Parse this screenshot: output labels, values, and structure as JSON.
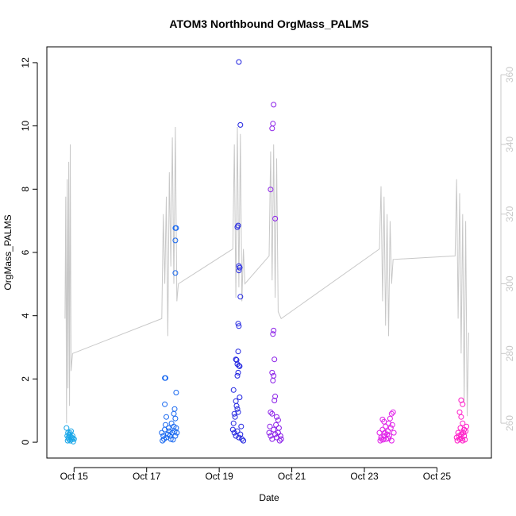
{
  "chart_data": {
    "type": "scatter",
    "title": "ATOM3 Northbound OrgMass_PALMS",
    "xlabel": "Date",
    "ylabel": "OrgMass_PALMS",
    "xlim": [
      "2017-10-14 06:00",
      "2017-10-26 12:00"
    ],
    "ylim": [
      -0.5,
      12.5
    ],
    "y2lim": [
      250,
      368
    ],
    "x_ticks": [
      {
        "label": "Oct 15",
        "value": "2017-10-15"
      },
      {
        "label": "Oct 17",
        "value": "2017-10-17"
      },
      {
        "label": "Oct 19",
        "value": "2017-10-19"
      },
      {
        "label": "Oct 21",
        "value": "2017-10-21"
      },
      {
        "label": "Oct 23",
        "value": "2017-10-23"
      },
      {
        "label": "Oct 25",
        "value": "2017-10-25"
      }
    ],
    "y_ticks": [
      0,
      2,
      4,
      6,
      8,
      10,
      12
    ],
    "y2_ticks": [
      260,
      280,
      300,
      320,
      340,
      360
    ],
    "grid": false,
    "colors": {
      "flight1": "#1aa7e8",
      "flight2": "#1566f0",
      "flight3": "#1f22e0",
      "flight4": "#8a1ee8",
      "flight5": "#e01ee8",
      "flight6": "#ff1ac8",
      "line": "#c8c8c8"
    },
    "series": [
      {
        "flight": "flight1",
        "points": [
          [
            "2017-10-14 19:00",
            0.45
          ],
          [
            "2017-10-14 19:30",
            0.2
          ],
          [
            "2017-10-14 20:00",
            0.3
          ],
          [
            "2017-10-14 20:30",
            0.1
          ],
          [
            "2017-10-14 21:00",
            0.25
          ],
          [
            "2017-10-14 21:30",
            0.05
          ],
          [
            "2017-10-14 22:00",
            0.35
          ],
          [
            "2017-10-14 22:30",
            0.15
          ],
          [
            "2017-10-14 23:00",
            0.2
          ],
          [
            "2017-10-14 23:30",
            0.02
          ],
          [
            "2017-10-15 00:00",
            0.1
          ],
          [
            "2017-10-14 19:45",
            0.05
          ],
          [
            "2017-10-14 20:15",
            0.15
          ],
          [
            "2017-10-14 21:15",
            0.3
          ],
          [
            "2017-10-14 22:15",
            0.08
          ],
          [
            "2017-10-14 23:15",
            0.12
          ],
          [
            "2017-10-14 20:45",
            0.22
          ],
          [
            "2017-10-14 21:45",
            0.18
          ]
        ]
      },
      {
        "flight": "flight2",
        "points": [
          [
            "2017-10-17 12:00",
            2.03
          ],
          [
            "2017-10-17 12:30",
            2.03
          ],
          [
            "2017-10-17 12:00",
            1.2
          ],
          [
            "2017-10-17 19:00",
            6.77
          ],
          [
            "2017-10-17 19:30",
            6.77
          ],
          [
            "2017-10-17 19:00",
            6.38
          ],
          [
            "2017-10-17 19:00",
            5.35
          ],
          [
            "2017-10-17 19:30",
            1.57
          ],
          [
            "2017-10-17 18:30",
            1.05
          ],
          [
            "2017-10-17 18:00",
            0.9
          ],
          [
            "2017-10-17 13:00",
            0.8
          ],
          [
            "2017-10-17 19:00",
            0.75
          ],
          [
            "2017-10-17 10:00",
            0.3
          ],
          [
            "2017-10-17 11:00",
            0.2
          ],
          [
            "2017-10-17 12:00",
            0.4
          ],
          [
            "2017-10-17 13:00",
            0.15
          ],
          [
            "2017-10-17 14:00",
            0.25
          ],
          [
            "2017-10-17 15:00",
            0.35
          ],
          [
            "2017-10-17 16:00",
            0.1
          ],
          [
            "2017-10-17 17:00",
            0.3
          ],
          [
            "2017-10-17 18:00",
            0.5
          ],
          [
            "2017-10-17 19:00",
            0.2
          ],
          [
            "2017-10-17 20:00",
            0.3
          ],
          [
            "2017-10-17 10:30",
            0.05
          ],
          [
            "2017-10-17 12:30",
            0.55
          ],
          [
            "2017-10-17 14:30",
            0.45
          ],
          [
            "2017-10-17 16:30",
            0.6
          ],
          [
            "2017-10-17 18:30",
            0.35
          ],
          [
            "2017-10-17 11:30",
            0.1
          ],
          [
            "2017-10-17 15:30",
            0.2
          ],
          [
            "2017-10-17 17:30",
            0.08
          ],
          [
            "2017-10-17 19:30",
            0.45
          ]
        ]
      },
      {
        "flight": "flight3",
        "points": [
          [
            "2017-10-19 13:00",
            12.02
          ],
          [
            "2017-10-19 14:00",
            10.03
          ],
          [
            "2017-10-19 12:30",
            6.85
          ],
          [
            "2017-10-19 12:00",
            6.8
          ],
          [
            "2017-10-19 13:00",
            5.57
          ],
          [
            "2017-10-19 13:30",
            5.52
          ],
          [
            "2017-10-19 13:00",
            5.43
          ],
          [
            "2017-10-19 14:00",
            4.6
          ],
          [
            "2017-10-19 12:30",
            3.75
          ],
          [
            "2017-10-19 13:00",
            3.67
          ],
          [
            "2017-10-19 12:30",
            2.87
          ],
          [
            "2017-10-19 11:00",
            2.62
          ],
          [
            "2017-10-19 11:30",
            2.6
          ],
          [
            "2017-10-19 12:00",
            2.47
          ],
          [
            "2017-10-19 13:00",
            2.42
          ],
          [
            "2017-10-19 13:30",
            2.4
          ],
          [
            "2017-10-19 12:30",
            2.2
          ],
          [
            "2017-10-19 12:00",
            2.1
          ],
          [
            "2017-10-19 09:30",
            1.65
          ],
          [
            "2017-10-19 13:30",
            1.42
          ],
          [
            "2017-10-19 11:00",
            1.3
          ],
          [
            "2017-10-19 11:30",
            1.15
          ],
          [
            "2017-10-19 12:00",
            1.05
          ],
          [
            "2017-10-19 12:30",
            0.95
          ],
          [
            "2017-10-19 10:00",
            0.9
          ],
          [
            "2017-10-19 10:30",
            0.8
          ],
          [
            "2017-10-19 09:00",
            0.4
          ],
          [
            "2017-10-19 10:00",
            0.3
          ],
          [
            "2017-10-19 11:00",
            0.2
          ],
          [
            "2017-10-19 12:00",
            0.35
          ],
          [
            "2017-10-19 13:00",
            0.15
          ],
          [
            "2017-10-19 14:00",
            0.25
          ],
          [
            "2017-10-19 15:00",
            0.1
          ],
          [
            "2017-10-19 16:00",
            0.05
          ],
          [
            "2017-10-19 09:30",
            0.6
          ],
          [
            "2017-10-19 14:30",
            0.5
          ]
        ]
      },
      {
        "flight": "flight4",
        "points": [
          [
            "2017-10-20 12:00",
            10.67
          ],
          [
            "2017-10-20 11:30",
            10.07
          ],
          [
            "2017-10-20 11:00",
            9.92
          ],
          [
            "2017-10-20 10:00",
            7.99
          ],
          [
            "2017-10-20 13:00",
            7.07
          ],
          [
            "2017-10-20 12:00",
            3.53
          ],
          [
            "2017-10-20 11:30",
            3.42
          ],
          [
            "2017-10-20 12:30",
            2.62
          ],
          [
            "2017-10-20 11:00",
            2.2
          ],
          [
            "2017-10-20 12:00",
            2.1
          ],
          [
            "2017-10-20 11:30",
            1.95
          ],
          [
            "2017-10-20 13:00",
            1.45
          ],
          [
            "2017-10-20 12:30",
            1.32
          ],
          [
            "2017-10-20 10:00",
            0.95
          ],
          [
            "2017-10-20 11:00",
            0.9
          ],
          [
            "2017-10-20 14:00",
            0.8
          ],
          [
            "2017-10-20 15:00",
            0.7
          ],
          [
            "2017-10-20 09:00",
            0.3
          ],
          [
            "2017-10-20 10:00",
            0.2
          ],
          [
            "2017-10-20 11:00",
            0.1
          ],
          [
            "2017-10-20 12:00",
            0.4
          ],
          [
            "2017-10-20 13:00",
            0.25
          ],
          [
            "2017-10-20 14:00",
            0.15
          ],
          [
            "2017-10-20 15:00",
            0.3
          ],
          [
            "2017-10-20 16:00",
            0.05
          ],
          [
            "2017-10-20 17:00",
            0.1
          ],
          [
            "2017-10-20 09:30",
            0.5
          ],
          [
            "2017-10-20 13:30",
            0.55
          ],
          [
            "2017-10-20 15:30",
            0.45
          ],
          [
            "2017-10-20 16:30",
            0.2
          ]
        ]
      },
      {
        "flight": "flight5",
        "points": [
          [
            "2017-10-23 10:00",
            0.3
          ],
          [
            "2017-10-23 11:00",
            0.15
          ],
          [
            "2017-10-23 12:00",
            0.4
          ],
          [
            "2017-10-23 13:00",
            0.2
          ],
          [
            "2017-10-23 14:00",
            0.5
          ],
          [
            "2017-10-23 15:00",
            0.25
          ],
          [
            "2017-10-23 16:00",
            0.6
          ],
          [
            "2017-10-23 17:00",
            0.75
          ],
          [
            "2017-10-23 18:00",
            0.9
          ],
          [
            "2017-10-23 19:00",
            0.95
          ],
          [
            "2017-10-23 10:30",
            0.05
          ],
          [
            "2017-10-23 11:30",
            0.1
          ],
          [
            "2017-10-23 12:30",
            0.08
          ],
          [
            "2017-10-23 13:30",
            0.3
          ],
          [
            "2017-10-23 14:30",
            0.1
          ],
          [
            "2017-10-23 15:30",
            0.35
          ],
          [
            "2017-10-23 16:30",
            0.2
          ],
          [
            "2017-10-23 17:30",
            0.45
          ],
          [
            "2017-10-23 18:30",
            0.55
          ],
          [
            "2017-10-23 19:30",
            0.3
          ],
          [
            "2017-10-23 13:00",
            0.65
          ],
          [
            "2017-10-23 12:00",
            0.72
          ],
          [
            "2017-10-23 18:00",
            0.05
          ],
          [
            "2017-10-23 16:00",
            0.12
          ]
        ]
      },
      {
        "flight": "flight6",
        "points": [
          [
            "2017-10-25 16:00",
            1.33
          ],
          [
            "2017-10-25 17:00",
            1.2
          ],
          [
            "2017-10-25 15:00",
            0.95
          ],
          [
            "2017-10-25 16:00",
            0.8
          ],
          [
            "2017-10-25 17:00",
            0.6
          ],
          [
            "2017-10-25 18:00",
            0.4
          ],
          [
            "2017-10-25 13:00",
            0.15
          ],
          [
            "2017-10-25 14:00",
            0.3
          ],
          [
            "2017-10-25 15:00",
            0.1
          ],
          [
            "2017-10-25 16:00",
            0.25
          ],
          [
            "2017-10-25 17:00",
            0.05
          ],
          [
            "2017-10-25 18:00",
            0.2
          ],
          [
            "2017-10-25 19:00",
            0.35
          ],
          [
            "2017-10-25 13:30",
            0.05
          ],
          [
            "2017-10-25 14:30",
            0.2
          ],
          [
            "2017-10-25 15:30",
            0.45
          ],
          [
            "2017-10-25 16:30",
            0.12
          ],
          [
            "2017-10-25 17:30",
            0.3
          ],
          [
            "2017-10-25 18:30",
            0.08
          ],
          [
            "2017-10-25 19:30",
            0.5
          ]
        ]
      }
    ],
    "line_series": {
      "color": "#c8c8c8",
      "points": [
        [
          "2017-10-14 18:00",
          290
        ],
        [
          "2017-10-14 18:30",
          325
        ],
        [
          "2017-10-14 19:00",
          260
        ],
        [
          "2017-10-14 19:30",
          330
        ],
        [
          "2017-10-14 20:00",
          270
        ],
        [
          "2017-10-14 20:30",
          335
        ],
        [
          "2017-10-14 21:00",
          265
        ],
        [
          "2017-10-14 21:30",
          340
        ],
        [
          "2017-10-14 22:00",
          275
        ],
        [
          "2017-10-14 23:00",
          280
        ],
        [
          "2017-10-17 10:00",
          290
        ],
        [
          "2017-10-17 11:00",
          320
        ],
        [
          "2017-10-17 12:00",
          300
        ],
        [
          "2017-10-17 13:00",
          325
        ],
        [
          "2017-10-17 14:00",
          285
        ],
        [
          "2017-10-17 15:00",
          332
        ],
        [
          "2017-10-17 16:00",
          305
        ],
        [
          "2017-10-17 17:00",
          342
        ],
        [
          "2017-10-17 18:00",
          300
        ],
        [
          "2017-10-17 19:00",
          345
        ],
        [
          "2017-10-17 20:00",
          295
        ],
        [
          "2017-10-17 21:00",
          300
        ],
        [
          "2017-10-19 09:00",
          310
        ],
        [
          "2017-10-19 10:00",
          340
        ],
        [
          "2017-10-19 11:00",
          296
        ],
        [
          "2017-10-19 12:00",
          345
        ],
        [
          "2017-10-19 13:00",
          299
        ],
        [
          "2017-10-19 14:00",
          343
        ],
        [
          "2017-10-19 15:00",
          295
        ],
        [
          "2017-10-19 16:00",
          310
        ],
        [
          "2017-10-19 17:00",
          300
        ],
        [
          "2017-10-20 09:00",
          308
        ],
        [
          "2017-10-20 10:00",
          338
        ],
        [
          "2017-10-20 11:00",
          301
        ],
        [
          "2017-10-20 12:00",
          340
        ],
        [
          "2017-10-20 13:00",
          296
        ],
        [
          "2017-10-20 14:00",
          336
        ],
        [
          "2017-10-20 15:00",
          292
        ],
        [
          "2017-10-20 17:00",
          290
        ],
        [
          "2017-10-23 10:00",
          310
        ],
        [
          "2017-10-23 11:00",
          328
        ],
        [
          "2017-10-23 12:00",
          295
        ],
        [
          "2017-10-23 13:00",
          325
        ],
        [
          "2017-10-23 14:00",
          288
        ],
        [
          "2017-10-23 15:00",
          320
        ],
        [
          "2017-10-23 16:00",
          285
        ],
        [
          "2017-10-23 17:00",
          318
        ],
        [
          "2017-10-23 18:00",
          300
        ],
        [
          "2017-10-23 19:00",
          307
        ],
        [
          "2017-10-25 12:00",
          308
        ],
        [
          "2017-10-25 13:00",
          330
        ],
        [
          "2017-10-25 14:00",
          290
        ],
        [
          "2017-10-25 15:00",
          326
        ],
        [
          "2017-10-25 16:00",
          280
        ],
        [
          "2017-10-25 17:00",
          320
        ],
        [
          "2017-10-25 18:00",
          266
        ],
        [
          "2017-10-25 19:00",
          318
        ],
        [
          "2017-10-25 20:00",
          262
        ],
        [
          "2017-10-25 21:00",
          286
        ]
      ]
    }
  }
}
